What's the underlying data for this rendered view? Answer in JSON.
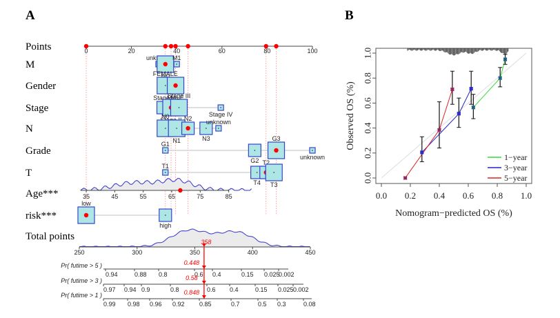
{
  "panels": {
    "a_label": "A",
    "b_label": "B"
  },
  "chart_data": [
    {
      "type": "nomogram",
      "panel": "A",
      "points_axis": {
        "label": "Points",
        "range": [
          0,
          100
        ],
        "ticks": [
          0,
          20,
          40,
          60,
          80,
          100
        ]
      },
      "selected_points": [
        0,
        35,
        37.5,
        39.5,
        45,
        79.5,
        84
      ],
      "variables": [
        {
          "name": "M",
          "levels": [
            {
              "label": "unknown",
              "points": 32,
              "size": "small"
            },
            {
              "label": "M0",
              "points": 35,
              "size": "large",
              "selected": true
            },
            {
              "label": "M1",
              "points": 40,
              "size": "small"
            }
          ]
        },
        {
          "name": "Gender",
          "levels": [
            {
              "label": "FEMALE",
              "points": 35,
              "size": "large"
            },
            {
              "label": "MALE",
              "points": 39.5,
              "size": "large",
              "selected": true
            }
          ]
        },
        {
          "name": "Stage",
          "levels": [
            {
              "label": "Stage I",
              "points": 34,
              "size": "medium"
            },
            {
              "label": "Stage II",
              "points": 37.5,
              "size": "large",
              "selected": true
            },
            {
              "label": "Stage III",
              "points": 41,
              "size": "large"
            },
            {
              "label": "Stage IV",
              "points": 59.5,
              "size": "small"
            }
          ]
        },
        {
          "name": "N",
          "levels": [
            {
              "label": "N0",
              "points": 35,
              "size": "large"
            },
            {
              "label": "N1",
              "points": 40,
              "size": "large"
            },
            {
              "label": "N2",
              "points": 45,
              "size": "medium",
              "selected": true
            },
            {
              "label": "N3",
              "points": 53,
              "size": "medium"
            },
            {
              "label": "unknown",
              "points": 58.5,
              "size": "small"
            }
          ]
        },
        {
          "name": "Grade",
          "levels": [
            {
              "label": "G1",
              "points": 35,
              "size": "small"
            },
            {
              "label": "G2",
              "points": 74.5,
              "size": "medium"
            },
            {
              "label": "G3",
              "points": 84,
              "size": "large",
              "selected": true
            },
            {
              "label": "unknown",
              "points": 100,
              "size": "small"
            }
          ]
        },
        {
          "name": "T",
          "levels": [
            {
              "label": "T1",
              "points": 35,
              "size": "small"
            },
            {
              "label": "T4",
              "points": 75.5,
              "size": "medium"
            },
            {
              "label": "T2",
              "points": 79.5,
              "size": "medium",
              "selected": true
            },
            {
              "label": "T3",
              "points": 83,
              "size": "large"
            }
          ]
        }
      ],
      "age": {
        "name": "Age***",
        "ticks": [
          35,
          45,
          55,
          65,
          75,
          85
        ],
        "selected_value": 68
      },
      "risk": {
        "name": "risk***",
        "levels": [
          {
            "label": "low",
            "points": 0,
            "size": "large",
            "selected": true
          },
          {
            "label": "high",
            "points": 35,
            "size": "medium"
          }
        ]
      },
      "total_points": {
        "label": "Total points",
        "range": [
          250,
          450
        ],
        "ticks": [
          250,
          300,
          350,
          400,
          450
        ],
        "value": 358,
        "value_label": "358"
      },
      "probability_axes": [
        {
          "label": "Pr( futime > 5 )",
          "ticks": [
            "0.94",
            "0.88",
            "0.8",
            "0.6",
            "0.4",
            "0.15",
            "0.025",
            "0.002"
          ],
          "value_label": "0.448"
        },
        {
          "label": "Pr( futime > 3 )",
          "ticks": [
            "0.97",
            "0.94",
            "0.9",
            "0.8",
            "0.6",
            "0.4",
            "0.15",
            "0.025",
            "0.002"
          ],
          "value_label": "0.58"
        },
        {
          "label": "Pr( futime > 1 )",
          "ticks": [
            "0.99",
            "0.98",
            "0.96",
            "0.92",
            "0.85",
            "0.7",
            "0.5",
            "0.3",
            "0.08"
          ],
          "value_label": "0.848"
        }
      ],
      "colors": {
        "selected": "#ff0000",
        "box_fill": "#aee6e6",
        "box_stroke": "#3344cc",
        "density_line": "#3333cc",
        "density_fill": "#ebebeb",
        "guide": "#ff8888"
      }
    },
    {
      "type": "line",
      "panel": "B",
      "title": "",
      "xlabel": "Nomogram−predicted OS (%)",
      "ylabel": "Observed OS (%)",
      "xlim": [
        0,
        1
      ],
      "ylim": [
        0,
        1
      ],
      "xticks": [
        "0.0",
        "0.2",
        "0.4",
        "0.6",
        "0.8",
        "1.0"
      ],
      "yticks": [
        "0.0",
        "0.2",
        "0.4",
        "0.6",
        "0.8",
        "1.0"
      ],
      "legend_position": "bottom-right",
      "series": [
        {
          "name": "1−year",
          "color": "#33dd33",
          "points": [
            {
              "x": 0.635,
              "y": 0.565,
              "lo": 0.475,
              "hi": 0.67
            },
            {
              "x": 0.82,
              "y": 0.8,
              "lo": 0.73,
              "hi": 0.885
            },
            {
              "x": 0.855,
              "y": 0.95,
              "lo": 0.91,
              "hi": 0.99
            }
          ]
        },
        {
          "name": "3−year",
          "color": "#2222cc",
          "points": [
            {
              "x": 0.28,
              "y": 0.205,
              "lo": 0.13,
              "hi": 0.33
            },
            {
              "x": 0.535,
              "y": 0.515,
              "lo": 0.405,
              "hi": 0.64
            },
            {
              "x": 0.62,
              "y": 0.715,
              "lo": 0.59,
              "hi": 0.855
            }
          ]
        },
        {
          "name": "5−year",
          "color": "#dd2222",
          "points": [
            {
              "x": 0.165,
              "y": 0.0,
              "lo": null,
              "hi": null
            },
            {
              "x": 0.4,
              "y": 0.385,
              "lo": 0.24,
              "hi": 0.61
            },
            {
              "x": 0.49,
              "y": 0.71,
              "lo": 0.59,
              "hi": 0.855
            }
          ]
        }
      ],
      "reference_line": {
        "from": [
          0,
          0
        ],
        "to": [
          1,
          1
        ],
        "color": "#dddddd"
      }
    }
  ]
}
